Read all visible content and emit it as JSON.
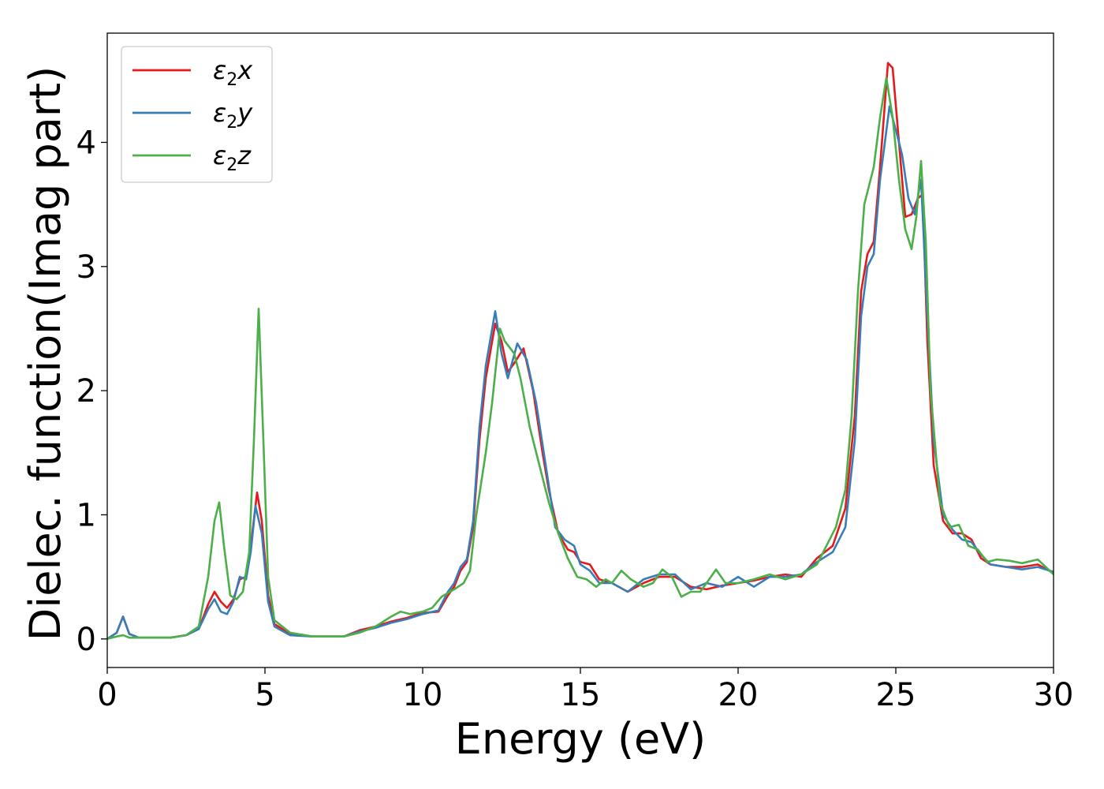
{
  "chart_data": {
    "type": "line",
    "xlabel": "Energy (eV)",
    "ylabel": "Dielec. function(Imag part)",
    "xlim": [
      0,
      30
    ],
    "ylim": [
      -0.23,
      4.88
    ],
    "xticks": [
      0,
      5,
      10,
      15,
      20,
      25,
      30
    ],
    "yticks": [
      0,
      1,
      2,
      3,
      4
    ],
    "grid": false,
    "legend_position": "top-left",
    "series": [
      {
        "name": "ε₂x",
        "legend_base": "ε",
        "legend_sub": "2",
        "legend_tail": "x",
        "color": "#e41a1c",
        "points": [
          [
            0,
            0
          ],
          [
            0.3,
            0.05
          ],
          [
            0.5,
            0.18
          ],
          [
            0.7,
            0.04
          ],
          [
            1.0,
            0.01
          ],
          [
            2.0,
            0.01
          ],
          [
            2.5,
            0.03
          ],
          [
            2.9,
            0.08
          ],
          [
            3.2,
            0.28
          ],
          [
            3.4,
            0.38
          ],
          [
            3.6,
            0.3
          ],
          [
            3.8,
            0.25
          ],
          [
            4.0,
            0.32
          ],
          [
            4.2,
            0.48
          ],
          [
            4.4,
            0.5
          ],
          [
            4.55,
            0.75
          ],
          [
            4.75,
            1.18
          ],
          [
            4.9,
            0.95
          ],
          [
            5.1,
            0.35
          ],
          [
            5.3,
            0.12
          ],
          [
            5.8,
            0.04
          ],
          [
            6.5,
            0.02
          ],
          [
            7.5,
            0.02
          ],
          [
            8.0,
            0.07
          ],
          [
            8.5,
            0.1
          ],
          [
            9.0,
            0.14
          ],
          [
            9.5,
            0.17
          ],
          [
            10.0,
            0.21
          ],
          [
            10.5,
            0.22
          ],
          [
            10.8,
            0.35
          ],
          [
            11.0,
            0.42
          ],
          [
            11.2,
            0.55
          ],
          [
            11.4,
            0.62
          ],
          [
            11.6,
            0.9
          ],
          [
            11.8,
            1.6
          ],
          [
            12.0,
            2.1
          ],
          [
            12.3,
            2.54
          ],
          [
            12.5,
            2.4
          ],
          [
            12.7,
            2.15
          ],
          [
            12.9,
            2.22
          ],
          [
            13.2,
            2.34
          ],
          [
            13.5,
            2.0
          ],
          [
            13.8,
            1.5
          ],
          [
            14.0,
            1.2
          ],
          [
            14.3,
            0.85
          ],
          [
            14.6,
            0.72
          ],
          [
            14.8,
            0.7
          ],
          [
            15.0,
            0.62
          ],
          [
            15.3,
            0.6
          ],
          [
            15.6,
            0.48
          ],
          [
            16.0,
            0.45
          ],
          [
            16.5,
            0.38
          ],
          [
            17.0,
            0.45
          ],
          [
            17.5,
            0.5
          ],
          [
            18.0,
            0.5
          ],
          [
            18.5,
            0.42
          ],
          [
            19.0,
            0.4
          ],
          [
            19.5,
            0.43
          ],
          [
            20.0,
            0.45
          ],
          [
            20.5,
            0.47
          ],
          [
            21.0,
            0.5
          ],
          [
            21.5,
            0.52
          ],
          [
            22.0,
            0.5
          ],
          [
            22.5,
            0.65
          ],
          [
            23.0,
            0.75
          ],
          [
            23.4,
            1.05
          ],
          [
            23.7,
            1.8
          ],
          [
            23.9,
            2.8
          ],
          [
            24.1,
            3.1
          ],
          [
            24.3,
            3.2
          ],
          [
            24.5,
            3.8
          ],
          [
            24.75,
            4.64
          ],
          [
            24.9,
            4.6
          ],
          [
            25.1,
            4.0
          ],
          [
            25.3,
            3.4
          ],
          [
            25.5,
            3.42
          ],
          [
            25.7,
            3.55
          ],
          [
            25.85,
            3.58
          ],
          [
            26.0,
            2.4
          ],
          [
            26.2,
            1.4
          ],
          [
            26.5,
            0.95
          ],
          [
            26.8,
            0.85
          ],
          [
            27.1,
            0.85
          ],
          [
            27.4,
            0.8
          ],
          [
            27.7,
            0.65
          ],
          [
            28.0,
            0.6
          ],
          [
            28.5,
            0.58
          ],
          [
            29.0,
            0.58
          ],
          [
            29.5,
            0.6
          ],
          [
            30,
            0.53
          ]
        ]
      },
      {
        "name": "ε₂y",
        "legend_base": "ε",
        "legend_sub": "2",
        "legend_tail": "y",
        "color": "#377eb8",
        "points": [
          [
            0,
            0
          ],
          [
            0.3,
            0.05
          ],
          [
            0.5,
            0.18
          ],
          [
            0.7,
            0.04
          ],
          [
            1.0,
            0.01
          ],
          [
            2.0,
            0.01
          ],
          [
            2.5,
            0.03
          ],
          [
            2.9,
            0.08
          ],
          [
            3.2,
            0.24
          ],
          [
            3.4,
            0.32
          ],
          [
            3.6,
            0.22
          ],
          [
            3.8,
            0.2
          ],
          [
            4.0,
            0.3
          ],
          [
            4.2,
            0.5
          ],
          [
            4.4,
            0.48
          ],
          [
            4.55,
            0.7
          ],
          [
            4.7,
            1.07
          ],
          [
            4.9,
            0.85
          ],
          [
            5.1,
            0.3
          ],
          [
            5.3,
            0.1
          ],
          [
            5.8,
            0.03
          ],
          [
            6.5,
            0.02
          ],
          [
            7.5,
            0.02
          ],
          [
            8.0,
            0.06
          ],
          [
            8.5,
            0.09
          ],
          [
            9.0,
            0.13
          ],
          [
            9.5,
            0.16
          ],
          [
            10.0,
            0.2
          ],
          [
            10.5,
            0.23
          ],
          [
            10.8,
            0.38
          ],
          [
            11.0,
            0.45
          ],
          [
            11.2,
            0.58
          ],
          [
            11.4,
            0.64
          ],
          [
            11.6,
            0.95
          ],
          [
            11.8,
            1.7
          ],
          [
            12.0,
            2.2
          ],
          [
            12.3,
            2.64
          ],
          [
            12.5,
            2.3
          ],
          [
            12.7,
            2.1
          ],
          [
            13.0,
            2.38
          ],
          [
            13.3,
            2.25
          ],
          [
            13.6,
            1.9
          ],
          [
            13.9,
            1.4
          ],
          [
            14.2,
            0.9
          ],
          [
            14.5,
            0.8
          ],
          [
            14.8,
            0.75
          ],
          [
            15.0,
            0.6
          ],
          [
            15.3,
            0.55
          ],
          [
            15.6,
            0.45
          ],
          [
            16.0,
            0.45
          ],
          [
            16.5,
            0.38
          ],
          [
            17.0,
            0.48
          ],
          [
            17.5,
            0.52
          ],
          [
            18.0,
            0.52
          ],
          [
            18.5,
            0.4
          ],
          [
            19.0,
            0.45
          ],
          [
            19.5,
            0.42
          ],
          [
            20.0,
            0.5
          ],
          [
            20.5,
            0.42
          ],
          [
            21.0,
            0.5
          ],
          [
            21.5,
            0.5
          ],
          [
            22.0,
            0.52
          ],
          [
            22.5,
            0.62
          ],
          [
            23.0,
            0.7
          ],
          [
            23.4,
            0.9
          ],
          [
            23.7,
            1.6
          ],
          [
            23.9,
            2.6
          ],
          [
            24.1,
            3.0
          ],
          [
            24.3,
            3.1
          ],
          [
            24.5,
            3.7
          ],
          [
            24.8,
            4.29
          ],
          [
            25.0,
            4.1
          ],
          [
            25.2,
            3.9
          ],
          [
            25.4,
            3.55
          ],
          [
            25.6,
            3.42
          ],
          [
            25.8,
            3.7
          ],
          [
            26.0,
            2.6
          ],
          [
            26.2,
            1.6
          ],
          [
            26.5,
            1.0
          ],
          [
            26.8,
            0.88
          ],
          [
            27.1,
            0.8
          ],
          [
            27.4,
            0.78
          ],
          [
            27.7,
            0.68
          ],
          [
            28.0,
            0.6
          ],
          [
            28.5,
            0.58
          ],
          [
            29.0,
            0.56
          ],
          [
            29.5,
            0.58
          ],
          [
            30,
            0.54
          ]
        ]
      },
      {
        "name": "ε₂z",
        "legend_base": "ε",
        "legend_sub": "2",
        "legend_tail": "z",
        "color": "#4daf4a",
        "points": [
          [
            0,
            0
          ],
          [
            0.3,
            0.02
          ],
          [
            0.5,
            0.03
          ],
          [
            0.7,
            0.01
          ],
          [
            1.0,
            0.01
          ],
          [
            2.0,
            0.01
          ],
          [
            2.5,
            0.03
          ],
          [
            2.9,
            0.1
          ],
          [
            3.2,
            0.5
          ],
          [
            3.4,
            0.95
          ],
          [
            3.55,
            1.1
          ],
          [
            3.7,
            0.75
          ],
          [
            3.9,
            0.35
          ],
          [
            4.1,
            0.32
          ],
          [
            4.3,
            0.38
          ],
          [
            4.5,
            0.7
          ],
          [
            4.65,
            1.6
          ],
          [
            4.8,
            2.66
          ],
          [
            4.95,
            1.6
          ],
          [
            5.1,
            0.5
          ],
          [
            5.3,
            0.15
          ],
          [
            5.8,
            0.05
          ],
          [
            6.5,
            0.02
          ],
          [
            7.5,
            0.02
          ],
          [
            8.0,
            0.05
          ],
          [
            8.5,
            0.1
          ],
          [
            9.0,
            0.18
          ],
          [
            9.3,
            0.22
          ],
          [
            9.6,
            0.2
          ],
          [
            10.0,
            0.22
          ],
          [
            10.3,
            0.25
          ],
          [
            10.6,
            0.34
          ],
          [
            11.0,
            0.4
          ],
          [
            11.3,
            0.45
          ],
          [
            11.5,
            0.55
          ],
          [
            11.7,
            1.0
          ],
          [
            12.0,
            1.5
          ],
          [
            12.2,
            1.9
          ],
          [
            12.45,
            2.5
          ],
          [
            12.6,
            2.4
          ],
          [
            12.9,
            2.3
          ],
          [
            13.1,
            2.1
          ],
          [
            13.4,
            1.7
          ],
          [
            13.7,
            1.4
          ],
          [
            14.0,
            1.1
          ],
          [
            14.3,
            0.85
          ],
          [
            14.6,
            0.65
          ],
          [
            14.9,
            0.5
          ],
          [
            15.2,
            0.48
          ],
          [
            15.5,
            0.42
          ],
          [
            15.8,
            0.48
          ],
          [
            16.0,
            0.45
          ],
          [
            16.3,
            0.55
          ],
          [
            16.6,
            0.48
          ],
          [
            17.0,
            0.42
          ],
          [
            17.3,
            0.45
          ],
          [
            17.6,
            0.56
          ],
          [
            17.9,
            0.5
          ],
          [
            18.2,
            0.34
          ],
          [
            18.5,
            0.38
          ],
          [
            18.8,
            0.38
          ],
          [
            19.0,
            0.45
          ],
          [
            19.3,
            0.56
          ],
          [
            19.6,
            0.45
          ],
          [
            20.0,
            0.45
          ],
          [
            20.5,
            0.48
          ],
          [
            21.0,
            0.52
          ],
          [
            21.5,
            0.48
          ],
          [
            22.0,
            0.52
          ],
          [
            22.5,
            0.6
          ],
          [
            22.8,
            0.75
          ],
          [
            23.1,
            0.9
          ],
          [
            23.4,
            1.2
          ],
          [
            23.6,
            1.8
          ],
          [
            23.8,
            2.8
          ],
          [
            24.0,
            3.5
          ],
          [
            24.3,
            3.8
          ],
          [
            24.5,
            4.2
          ],
          [
            24.7,
            4.52
          ],
          [
            24.9,
            4.2
          ],
          [
            25.1,
            3.7
          ],
          [
            25.3,
            3.3
          ],
          [
            25.5,
            3.14
          ],
          [
            25.65,
            3.4
          ],
          [
            25.8,
            3.85
          ],
          [
            25.95,
            3.2
          ],
          [
            26.1,
            2.0
          ],
          [
            26.4,
            1.1
          ],
          [
            26.7,
            0.9
          ],
          [
            27.0,
            0.92
          ],
          [
            27.3,
            0.75
          ],
          [
            27.6,
            0.72
          ],
          [
            27.9,
            0.62
          ],
          [
            28.2,
            0.64
          ],
          [
            28.6,
            0.63
          ],
          [
            29.0,
            0.61
          ],
          [
            29.5,
            0.64
          ],
          [
            30,
            0.52
          ]
        ]
      }
    ]
  }
}
